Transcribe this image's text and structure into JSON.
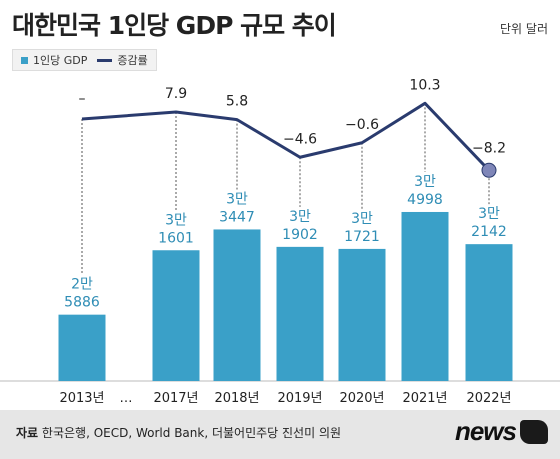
{
  "chart_data": {
    "type": "bar+line",
    "title": "대한민국 1인당 GDP 규모 추이",
    "unit": "단위 달러",
    "categories": [
      "2013년",
      "2017년",
      "2018년",
      "2019년",
      "2020년",
      "2021년",
      "2022년"
    ],
    "gap_marker": "…",
    "series": [
      {
        "name": "1인당 GDP",
        "kind": "bar",
        "color": "#3aa0c8",
        "values": [
          25886,
          31601,
          33447,
          31902,
          31721,
          34998,
          32142
        ],
        "labels_top": [
          "2만",
          "3만",
          "3만",
          "3만",
          "3만",
          "3만",
          "3만"
        ],
        "labels_bottom": [
          "5886",
          "1601",
          "3447",
          "1902",
          "1721",
          "4998",
          "2142"
        ]
      },
      {
        "name": "증감률",
        "kind": "line",
        "color": "#2a3b6e",
        "values": [
          null,
          7.9,
          5.8,
          -4.6,
          -0.6,
          10.3,
          -8.2
        ],
        "labels": [
          "–",
          "7.9",
          "5.8",
          "−4.6",
          "−0.6",
          "10.3",
          "−8.2"
        ]
      }
    ]
  },
  "footer": {
    "source_label": "자료",
    "source_text": "한국은행, OECD, World Bank, 더불어민주당 진선미 의원",
    "brand": "news1"
  }
}
